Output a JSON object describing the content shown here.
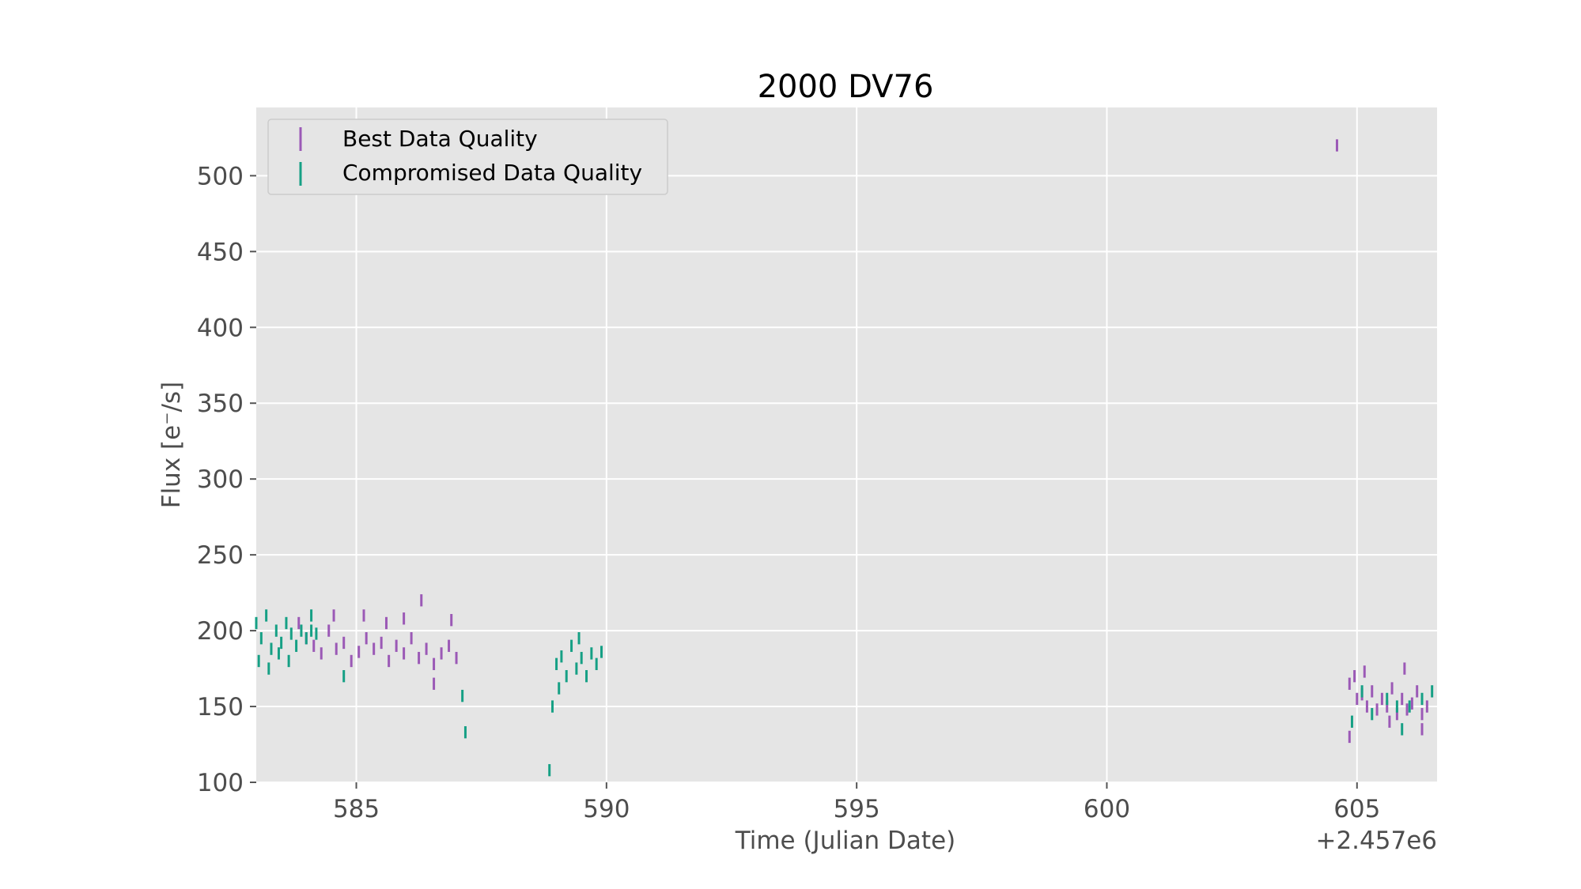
{
  "chart_data": {
    "type": "scatter",
    "title": "2000 DV76",
    "xlabel": "Time (Julian Date)",
    "ylabel": "Flux [e$^-$/s]",
    "ylabel_display": "Flux [e⁻/s]",
    "x_offset_label": "+2.457e6",
    "xlim": [
      583,
      606.6
    ],
    "ylim": [
      100,
      545
    ],
    "xticks": [
      585,
      590,
      595,
      600,
      605
    ],
    "xtick_labels": [
      "585",
      "590",
      "595",
      "600",
      "605"
    ],
    "yticks": [
      100,
      150,
      200,
      250,
      300,
      350,
      400,
      450,
      500
    ],
    "ytick_labels": [
      "100",
      "150",
      "200",
      "250",
      "300",
      "350",
      "400",
      "450",
      "500"
    ],
    "grid": true,
    "legend_position": "top-left",
    "error_bar_half_height": 4,
    "series": [
      {
        "name": "Best Data Quality",
        "color": "#9b59b6",
        "x": [
          584.0,
          584.15,
          584.3,
          584.45,
          584.6,
          584.75,
          584.9,
          585.05,
          585.2,
          585.35,
          585.5,
          585.65,
          585.8,
          585.95,
          586.1,
          586.25,
          586.4,
          586.55,
          586.7,
          586.85,
          587.0,
          583.85,
          584.55,
          585.15,
          585.6,
          585.95,
          586.3,
          586.9,
          586.55,
          604.85,
          604.95,
          604.85,
          605.0,
          605.1,
          605.2,
          605.3,
          605.4,
          605.5,
          605.6,
          605.7,
          605.8,
          605.9,
          606.0,
          606.1,
          606.2,
          606.3,
          606.4,
          605.15,
          605.65,
          606.3,
          605.95,
          604.6
        ],
        "y": [
          195,
          190,
          185,
          200,
          188,
          192,
          180,
          186,
          195,
          188,
          192,
          180,
          190,
          185,
          195,
          182,
          188,
          178,
          185,
          190,
          182,
          205,
          210,
          210,
          205,
          208,
          220,
          207,
          165,
          165,
          170,
          130,
          155,
          158,
          150,
          160,
          148,
          155,
          150,
          162,
          145,
          155,
          148,
          152,
          160,
          145,
          150,
          173,
          140,
          135,
          175,
          520
        ]
      },
      {
        "name": "Compromised Data Quality",
        "color": "#16a085",
        "x": [
          583.0,
          583.1,
          583.2,
          583.3,
          583.4,
          583.5,
          583.6,
          583.7,
          583.8,
          583.9,
          584.0,
          584.1,
          584.2,
          583.05,
          583.25,
          583.45,
          583.65,
          584.75,
          584.1,
          587.12,
          587.18,
          588.86,
          588.92,
          589.0,
          589.1,
          589.2,
          589.3,
          589.4,
          589.5,
          589.6,
          589.7,
          589.8,
          589.9,
          589.05,
          589.45,
          604.9,
          605.1,
          605.3,
          605.6,
          605.8,
          606.05,
          606.3,
          606.5,
          605.9
        ],
        "y": [
          205,
          195,
          210,
          188,
          200,
          192,
          205,
          198,
          190,
          200,
          195,
          210,
          198,
          180,
          175,
          185,
          180,
          170,
          200,
          157,
          133,
          108,
          150,
          178,
          183,
          170,
          190,
          175,
          182,
          170,
          185,
          178,
          186,
          162,
          195,
          140,
          160,
          145,
          155,
          150,
          150,
          155,
          160,
          135
        ]
      }
    ]
  }
}
